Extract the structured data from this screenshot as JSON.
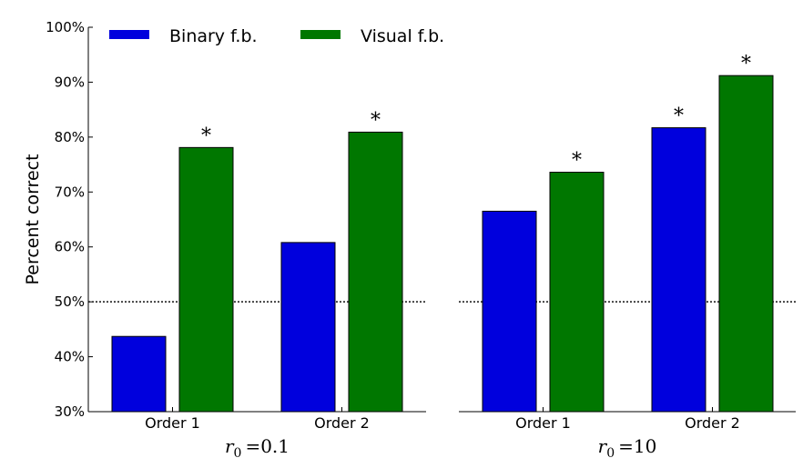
{
  "chart_data": {
    "type": "bar",
    "ylabel": "Percent correct",
    "yticks": [
      "30%",
      "40%",
      "50%",
      "60%",
      "70%",
      "80%",
      "90%",
      "100%"
    ],
    "ylim": [
      30,
      100
    ],
    "reference_line": 50,
    "legend": {
      "placement": "top-left",
      "entries": [
        {
          "name": "Binary f.b.",
          "color": "#0000dd"
        },
        {
          "name": "Visual f.b.",
          "color": "#007700"
        }
      ]
    },
    "panels": [
      {
        "title_symbol": "r",
        "title_subscript": "0",
        "title_value": "=0.1",
        "categories": [
          "Order 1",
          "Order 2"
        ],
        "series": [
          {
            "name": "Binary f.b.",
            "values": [
              43.7,
              60.8
            ],
            "significant": [
              false,
              false
            ]
          },
          {
            "name": "Visual f.b.",
            "values": [
              78.1,
              80.9
            ],
            "significant": [
              true,
              true
            ]
          }
        ]
      },
      {
        "title_symbol": "r",
        "title_subscript": "0",
        "title_value": "=10",
        "categories": [
          "Order 1",
          "Order 2"
        ],
        "series": [
          {
            "name": "Binary f.b.",
            "values": [
              66.5,
              81.7
            ],
            "significant": [
              false,
              true
            ]
          },
          {
            "name": "Visual f.b.",
            "values": [
              73.6,
              91.2
            ],
            "significant": [
              true,
              true
            ]
          }
        ]
      }
    ],
    "significance_marker": "*"
  }
}
